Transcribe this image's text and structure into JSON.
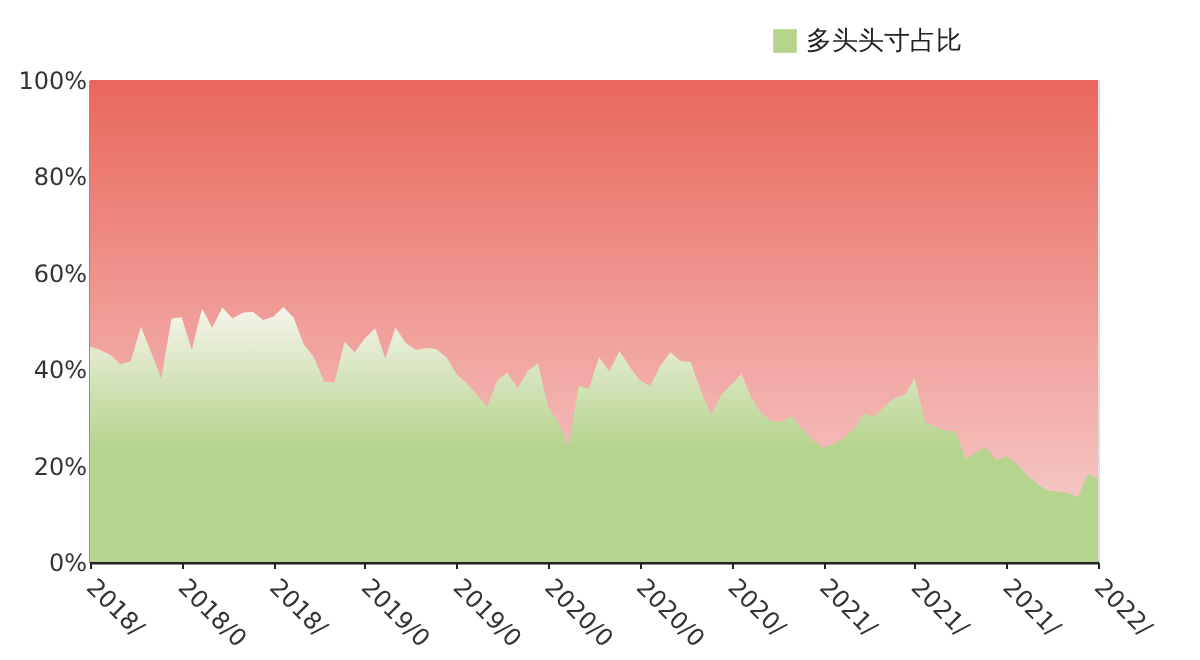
{
  "chart_data": {
    "type": "area",
    "categories": [
      "2018/",
      null,
      null,
      null,
      null,
      null,
      null,
      null,
      null,
      "2018/0",
      null,
      null,
      null,
      null,
      null,
      null,
      null,
      null,
      "2018/",
      null,
      null,
      null,
      null,
      null,
      null,
      null,
      null,
      "2019/0",
      null,
      null,
      null,
      null,
      null,
      null,
      null,
      null,
      "2019/0",
      null,
      null,
      null,
      null,
      null,
      null,
      null,
      null,
      "2020/0",
      null,
      null,
      null,
      null,
      null,
      null,
      null,
      null,
      "2020/0",
      null,
      null,
      null,
      null,
      null,
      null,
      null,
      null,
      "2020/",
      null,
      null,
      null,
      null,
      null,
      null,
      null,
      null,
      "2021/",
      null,
      null,
      null,
      null,
      null,
      null,
      null,
      null,
      "2021/",
      null,
      null,
      null,
      null,
      null,
      null,
      null,
      null,
      "2021/",
      null,
      null,
      null,
      null,
      null,
      null,
      null,
      null,
      "2022/"
    ],
    "series": [
      {
        "name": "多头头寸占比",
        "color": "#b5d48e",
        "values": [
          44.7,
          44,
          43,
          41,
          41.6,
          48.8,
          43.5,
          38,
          50.5,
          50.8,
          44,
          52.6,
          48.6,
          52.8,
          50.5,
          51.7,
          51.9,
          50.2,
          50.9,
          52.9,
          50.7,
          45.1,
          42.5,
          37.4,
          37.2,
          45.7,
          43.5,
          46.4,
          48.5,
          42.2,
          48.6,
          45.5,
          44,
          44.4,
          44.2,
          42.5,
          39,
          37.1,
          34.7,
          32.1,
          37.7,
          39.3,
          36,
          39.7,
          41.2,
          32.1,
          29,
          24,
          36.5,
          36,
          42.5,
          39.5,
          43.8,
          40.5,
          37.7,
          36.5,
          40.7,
          43.5,
          41.7,
          41.5,
          35.5,
          30.5,
          34.7,
          36.8,
          39,
          33.8,
          30.7,
          29.1,
          29.2,
          30.2,
          27.5,
          25.2,
          23.7,
          24.4,
          25.7,
          27.7,
          30.8,
          30.2,
          32.2,
          34,
          34.6,
          38.2,
          29,
          28.1,
          27.2,
          27.2,
          21.4,
          22.6,
          23.7,
          21.1,
          22,
          20.4,
          18.1,
          16.3,
          14.9,
          14.6,
          14.4,
          13.4,
          18.3,
          17.2
        ]
      }
    ],
    "ylim": [
      0,
      100
    ],
    "yticks": [
      {
        "value": 0,
        "label": "0%"
      },
      {
        "value": 20,
        "label": "20%"
      },
      {
        "value": 40,
        "label": "40%"
      },
      {
        "value": 60,
        "label": "60%"
      },
      {
        "value": 80,
        "label": "80%"
      },
      {
        "value": 100,
        "label": "100%"
      }
    ],
    "bands": [
      {
        "axis": "y",
        "from": 0,
        "to": 100,
        "color": "#e9675c"
      }
    ],
    "grid": "y",
    "legend": "top right"
  }
}
